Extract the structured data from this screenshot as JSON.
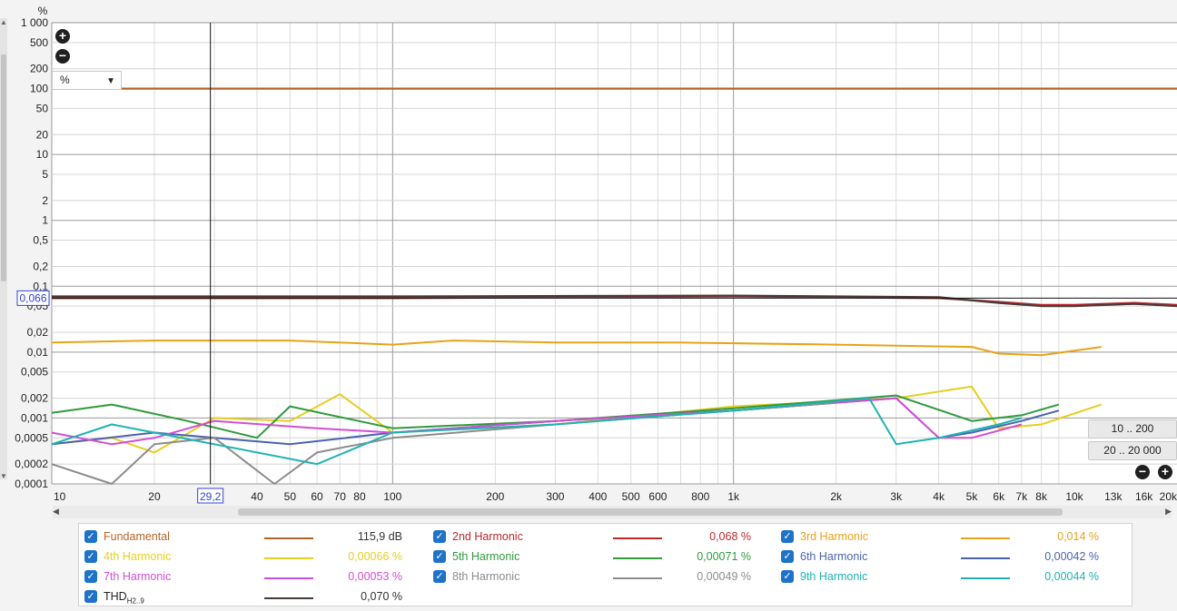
{
  "chart_data": {
    "type": "line",
    "xscale": "log",
    "yscale": "log",
    "xlim": [
      10,
      20000
    ],
    "ylim": [
      0.0001,
      1000
    ],
    "y_unit": "%",
    "grid": true,
    "x_ticks": [
      "10",
      "20",
      "30",
      "40",
      "50",
      "60",
      "70",
      "80",
      "100",
      "200",
      "300",
      "400",
      "500",
      "600",
      "800",
      "1k",
      "2k",
      "3k",
      "4k",
      "5k",
      "6k",
      "7k",
      "8k",
      "10k",
      "13k",
      "16k",
      "20k"
    ],
    "y_ticks": [
      "1 000",
      "500",
      "200",
      "100",
      "50",
      "20",
      "10",
      "5",
      "2",
      "1",
      "0,5",
      "0,2",
      "0,1",
      "0,05",
      "0,02",
      "0,01",
      "0,005",
      "0,002",
      "0,001",
      "0,0005",
      "0,0002",
      "0,0001"
    ],
    "cursor": {
      "x_label": "29,2",
      "y_label": "0,066",
      "x": 29.2,
      "y": 0.066
    },
    "series": [
      {
        "name": "Fundamental",
        "color": "#b5642a",
        "x": [
          10,
          20000
        ],
        "y": [
          100,
          100
        ]
      },
      {
        "name": "2nd Harmonic",
        "color": "#c0282d",
        "x": [
          10,
          100,
          1000,
          4000,
          6000,
          8000,
          10000,
          15000,
          20000
        ],
        "y": [
          0.066,
          0.066,
          0.07,
          0.066,
          0.058,
          0.052,
          0.052,
          0.056,
          0.052
        ]
      },
      {
        "name": "3rd Harmonic",
        "color": "#e8a317",
        "x": [
          10,
          20,
          50,
          100,
          150,
          300,
          700,
          2000,
          5000,
          6000,
          8000,
          10000,
          12000
        ],
        "y": [
          0.014,
          0.015,
          0.015,
          0.013,
          0.015,
          0.014,
          0.014,
          0.013,
          0.012,
          0.0095,
          0.009,
          0.0105,
          0.012
        ]
      },
      {
        "name": "4th Harmonic",
        "color": "#e6cf20",
        "x": [
          10,
          15,
          20,
          30,
          50,
          70,
          100,
          300,
          1000,
          3000,
          5000,
          6000,
          8000,
          12000
        ],
        "y": [
          0.0004,
          0.0005,
          0.0003,
          0.001,
          0.0009,
          0.0023,
          0.0006,
          0.0008,
          0.0015,
          0.002,
          0.003,
          0.0007,
          0.0008,
          0.0016
        ]
      },
      {
        "name": "5th Harmonic",
        "color": "#2e9b3c",
        "x": [
          10,
          15,
          25,
          40,
          50,
          100,
          300,
          1000,
          3000,
          5000,
          7000,
          9000
        ],
        "y": [
          0.0012,
          0.0016,
          0.0009,
          0.0005,
          0.0015,
          0.0007,
          0.0009,
          0.0014,
          0.0022,
          0.0009,
          0.0011,
          0.0016
        ]
      },
      {
        "name": "6th Harmonic",
        "color": "#4a63ad",
        "x": [
          10,
          20,
          30,
          50,
          100,
          300,
          1000,
          3000,
          4000,
          5000,
          7000,
          9000
        ],
        "y": [
          0.0004,
          0.0006,
          0.0005,
          0.0004,
          0.0006,
          0.0009,
          0.0013,
          0.002,
          0.0005,
          0.0006,
          0.0009,
          0.0013
        ]
      },
      {
        "name": "7th Harmonic",
        "color": "#d24fd6",
        "x": [
          10,
          15,
          20,
          30,
          60,
          100,
          300,
          1000,
          3000,
          4000,
          5000,
          7000
        ],
        "y": [
          0.0006,
          0.0004,
          0.0005,
          0.0009,
          0.0007,
          0.0006,
          0.0009,
          0.0013,
          0.002,
          0.0005,
          0.0005,
          0.0008
        ]
      },
      {
        "name": "8th Harmonic",
        "color": "#8c8c8c",
        "x": [
          10,
          15,
          20,
          30,
          45,
          60,
          100,
          300,
          1000,
          2000
        ],
        "y": [
          0.0002,
          0.0001,
          0.0004,
          0.0005,
          0.0001,
          0.0003,
          0.0005,
          0.0008,
          0.0013,
          0.0017
        ]
      },
      {
        "name": "9th Harmonic",
        "color": "#1eb3b3",
        "x": [
          10,
          15,
          20,
          30,
          60,
          100,
          300,
          1000,
          2500,
          3000,
          4000,
          6000,
          7000
        ],
        "y": [
          0.0004,
          0.0008,
          0.0006,
          0.0004,
          0.0002,
          0.0006,
          0.0008,
          0.0013,
          0.002,
          0.0004,
          0.0005,
          0.0008,
          0.001
        ]
      },
      {
        "name": "THD H2..9",
        "color": "#4a3a3a",
        "x": [
          10,
          100,
          1000,
          4000,
          6000,
          8000,
          10000,
          15000,
          20000
        ],
        "y": [
          0.07,
          0.07,
          0.072,
          0.068,
          0.056,
          0.05,
          0.05,
          0.054,
          0.05
        ]
      }
    ]
  },
  "controls": {
    "unit_select": "%",
    "zoom_in_icon": "zoom-in-icon",
    "zoom_out_icon": "zoom-out-icon",
    "range_button_1": "10 .. 200",
    "range_button_2": "20 .. 20 000"
  },
  "legend": [
    {
      "name": "Fundamental",
      "value": "115,9 dB",
      "color": "#b5642a"
    },
    {
      "name": "2nd Harmonic",
      "value": "0,068 %",
      "color": "#c0282d"
    },
    {
      "name": "3rd Harmonic",
      "value": "0,014 %",
      "color": "#e8a317"
    },
    {
      "name": "4th Harmonic",
      "value": "0,00066 %",
      "color": "#e6cf20"
    },
    {
      "name": "5th Harmonic",
      "value": "0,00071 %",
      "color": "#2e9b3c"
    },
    {
      "name": "6th Harmonic",
      "value": "0,00042 %",
      "color": "#4a63ad"
    },
    {
      "name": "7th Harmonic",
      "value": "0,00053 %",
      "color": "#d24fd6"
    },
    {
      "name": "8th Harmonic",
      "value": "0,00049 %",
      "color": "#8c8c8c"
    },
    {
      "name": "9th Harmonic",
      "value": "0,00044 %",
      "color": "#1eb3b3"
    },
    {
      "name": "THD",
      "sub": "H2..9",
      "value": "0,070 %",
      "color": "#4a3a3a"
    }
  ]
}
